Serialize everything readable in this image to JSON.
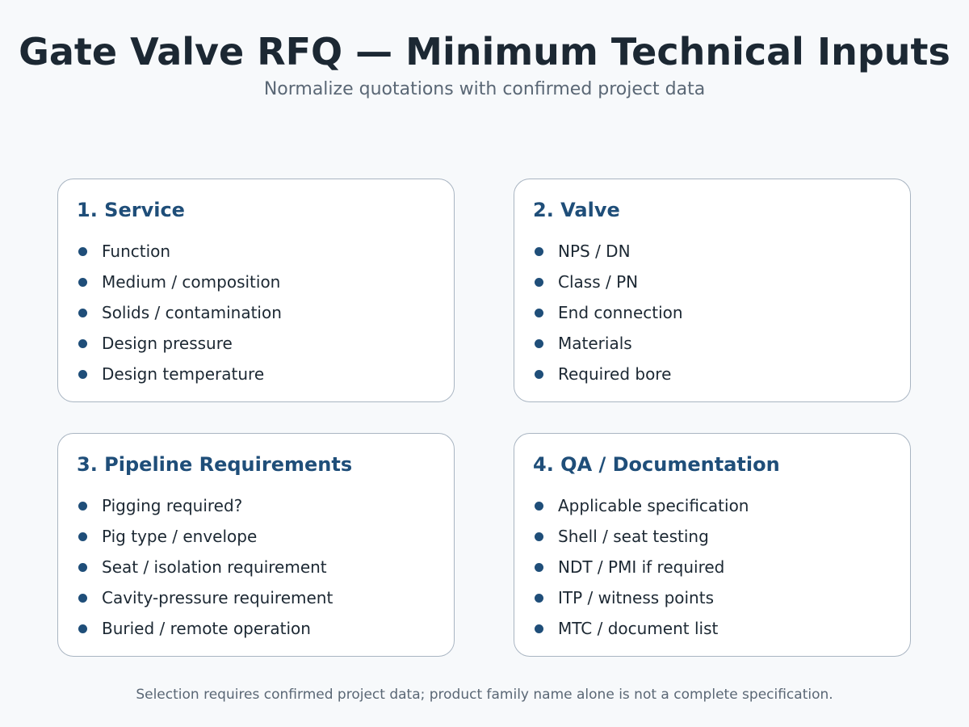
{
  "title": "Gate Valve RFQ — Minimum Technical Inputs",
  "subtitle": "Normalize quotations with confirmed project data",
  "cards": [
    {
      "heading": "1. Service",
      "items": [
        "Function",
        "Medium / composition",
        "Solids / contamination",
        "Design pressure",
        "Design temperature"
      ]
    },
    {
      "heading": "2. Valve",
      "items": [
        "NPS / DN",
        "Class / PN",
        "End connection",
        "Materials",
        "Required bore"
      ]
    },
    {
      "heading": "3. Pipeline Requirements",
      "items": [
        "Pigging required?",
        "Pig type / envelope",
        "Seat / isolation requirement",
        "Cavity-pressure requirement",
        "Buried / remote operation"
      ]
    },
    {
      "heading": "4. QA / Documentation",
      "items": [
        "Applicable specification",
        "Shell / seat testing",
        "NDT / PMI if required",
        "ITP / witness points",
        "MTC / document list"
      ]
    }
  ],
  "footnote": "Selection requires confirmed project data; product family name alone is not a complete specification.",
  "colors": {
    "background": "#f7f9fb",
    "title": "#1c2833",
    "subtitle": "#5a6775",
    "heading": "#1f4e79",
    "bullet": "#1f4e79",
    "card_border": "#a9b5c2"
  }
}
